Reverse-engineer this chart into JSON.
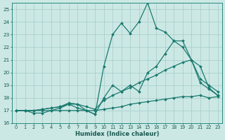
{
  "xlabel": "Humidex (Indice chaleur)",
  "background_color": "#cce8e5",
  "grid_color": "#aacfcc",
  "line_color": "#1a7a6e",
  "xlim_min": -0.5,
  "xlim_max": 23.5,
  "ylim_min": 16,
  "ylim_max": 25.5,
  "yticks": [
    16,
    17,
    18,
    19,
    20,
    21,
    22,
    23,
    24,
    25
  ],
  "xticks": [
    0,
    1,
    2,
    3,
    4,
    5,
    6,
    7,
    8,
    9,
    10,
    11,
    12,
    13,
    14,
    15,
    16,
    17,
    18,
    19,
    20,
    21,
    22,
    23
  ],
  "series": [
    {
      "x": [
        0,
        1,
        2,
        3,
        4,
        5,
        6,
        7,
        8,
        9,
        10,
        11,
        12,
        13,
        14,
        15,
        16,
        17,
        18,
        19,
        20,
        21,
        22,
        23
      ],
      "y": [
        17.0,
        17.0,
        17.0,
        17.0,
        17.0,
        17.0,
        17.0,
        17.0,
        17.0,
        17.0,
        17.1,
        17.2,
        17.3,
        17.5,
        17.6,
        17.7,
        17.8,
        17.9,
        18.0,
        18.1,
        18.1,
        18.2,
        18.0,
        18.1
      ]
    },
    {
      "x": [
        0,
        1,
        2,
        3,
        4,
        5,
        6,
        7,
        8,
        9,
        10,
        11,
        12,
        13,
        14,
        15,
        16,
        17,
        18,
        19,
        20,
        21,
        22,
        23
      ],
      "y": [
        17.0,
        17.0,
        17.0,
        17.1,
        17.2,
        17.3,
        17.5,
        17.5,
        17.3,
        17.1,
        17.8,
        18.2,
        18.5,
        18.8,
        19.2,
        19.5,
        19.8,
        20.2,
        20.5,
        20.8,
        21.0,
        20.5,
        18.8,
        18.2
      ]
    },
    {
      "x": [
        0,
        1,
        2,
        3,
        4,
        5,
        6,
        7,
        8,
        9,
        10,
        11,
        12,
        13,
        14,
        15,
        16,
        17,
        18,
        19,
        20,
        21,
        22,
        23
      ],
      "y": [
        17.0,
        17.0,
        17.0,
        17.1,
        17.2,
        17.3,
        17.6,
        17.5,
        17.0,
        16.7,
        18.0,
        19.0,
        18.5,
        19.0,
        18.5,
        20.0,
        20.5,
        21.5,
        22.5,
        22.0,
        21.0,
        19.5,
        19.0,
        18.5
      ]
    },
    {
      "x": [
        0,
        1,
        2,
        3,
        4,
        5,
        6,
        7,
        8,
        9,
        10,
        11,
        12,
        13,
        14,
        15,
        16,
        17,
        18,
        19,
        20,
        21,
        22,
        23
      ],
      "y": [
        17.0,
        17.0,
        16.8,
        16.8,
        17.0,
        17.2,
        17.5,
        17.2,
        17.0,
        16.7,
        20.5,
        23.0,
        23.9,
        23.1,
        24.0,
        25.5,
        23.5,
        23.2,
        22.5,
        22.5,
        21.0,
        19.2,
        18.7,
        18.2
      ]
    }
  ]
}
